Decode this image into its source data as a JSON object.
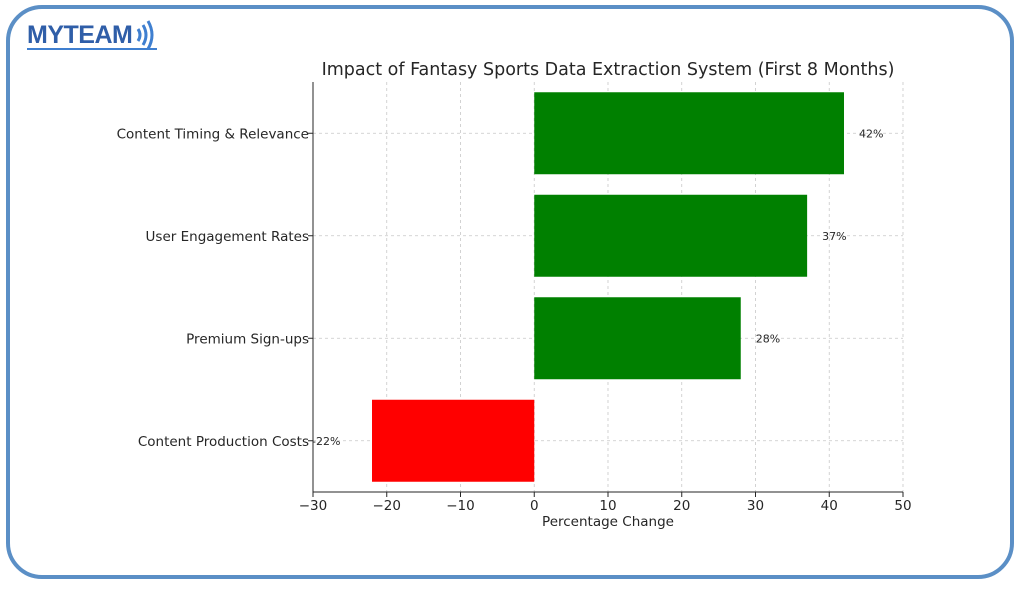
{
  "brand": {
    "name": "MYTEAM",
    "color": "#2f5ea8",
    "accent": "#3f7fd0"
  },
  "frame": {
    "border_color": "#5b8fc6"
  },
  "chart_data": {
    "type": "bar",
    "orientation": "horizontal",
    "title": "Impact of Fantasy Sports Data Extraction System (First 8 Months)",
    "xlabel": "Percentage Change",
    "ylabel": "",
    "xlim": [
      -30,
      50
    ],
    "xticks": [
      -30,
      -20,
      -10,
      0,
      10,
      20,
      30,
      40,
      50
    ],
    "xtick_labels": [
      "−30",
      "−20",
      "−10",
      "0",
      "10",
      "20",
      "30",
      "40",
      "50"
    ],
    "grid": true,
    "categories": [
      "Content Timing & Relevance",
      "User Engagement Rates",
      "Premium Sign-ups",
      "Content Production Costs"
    ],
    "values": [
      42,
      37,
      28,
      -22
    ],
    "data_labels": [
      "42%",
      "37%",
      "28%",
      "-22%"
    ],
    "colors": [
      "#008000",
      "#008000",
      "#008000",
      "#ff0000"
    ]
  }
}
